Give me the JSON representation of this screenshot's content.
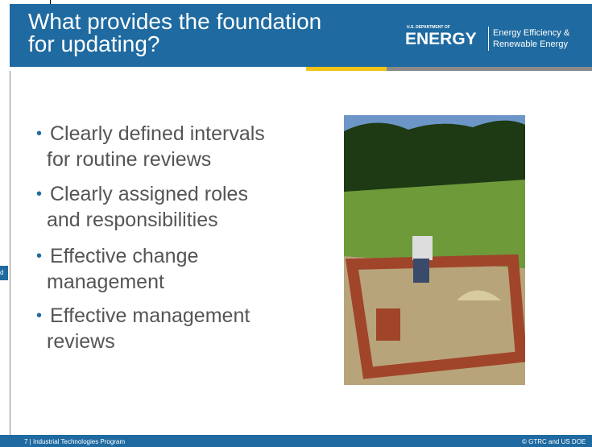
{
  "header": {
    "title": [
      "What provides the foundation",
      "for updating?"
    ],
    "logo": {
      "department": "U.S. DEPARTMENT OF",
      "name": "ENERGY",
      "office": [
        "Energy Efficiency &",
        "Renewable Energy"
      ]
    }
  },
  "side_tab": "d",
  "bullets": [
    [
      "Clearly defined intervals",
      "for routine reviews"
    ],
    [
      "Clearly assigned roles",
      "and responsibilities"
    ],
    [
      "Effective change",
      "management"
    ],
    [
      "Effective management",
      "reviews"
    ]
  ],
  "footer": {
    "left": "7 | Industrial Technologies Program",
    "right": "© GTRC and US DOE"
  }
}
